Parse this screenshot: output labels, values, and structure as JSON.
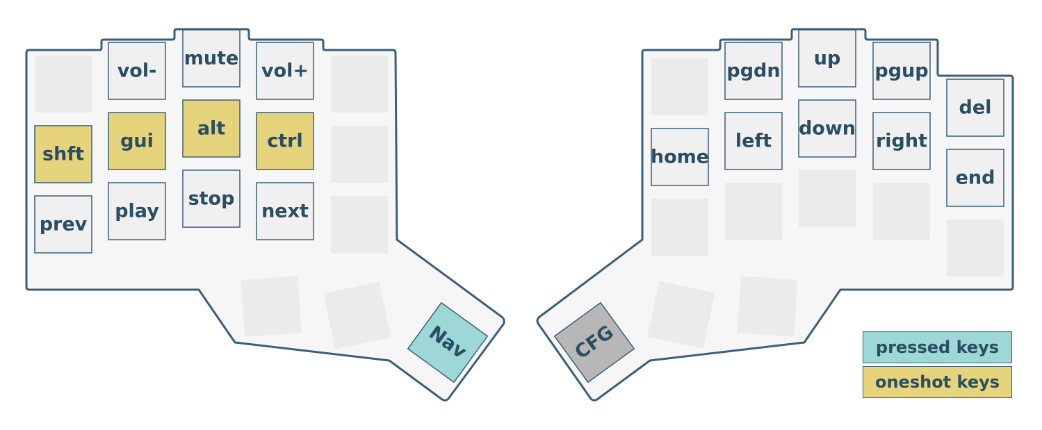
{
  "colors": {
    "outline": "#3a5f7a",
    "body": "#f6f6f6",
    "key": "#f0f0f0",
    "empty_key": "#ebebeb",
    "oneshot": "#e6d47c",
    "pressed": "#9dd8d6",
    "held_layer": "#b7b7b7",
    "text": "#2a4d62"
  },
  "left_keys": [
    {
      "label": "",
      "state": "empty"
    },
    {
      "label": "vol-",
      "state": "normal"
    },
    {
      "label": "mute",
      "state": "normal"
    },
    {
      "label": "vol+",
      "state": "normal"
    },
    {
      "label": "",
      "state": "empty"
    },
    {
      "label": "shft",
      "state": "oneshot"
    },
    {
      "label": "gui",
      "state": "oneshot"
    },
    {
      "label": "alt",
      "state": "oneshot"
    },
    {
      "label": "ctrl",
      "state": "oneshot"
    },
    {
      "label": "",
      "state": "empty"
    },
    {
      "label": "prev",
      "state": "normal"
    },
    {
      "label": "play",
      "state": "normal"
    },
    {
      "label": "stop",
      "state": "normal"
    },
    {
      "label": "next",
      "state": "normal"
    },
    {
      "label": "",
      "state": "empty"
    }
  ],
  "left_thumbs": [
    {
      "label": "",
      "state": "empty"
    },
    {
      "label": "",
      "state": "empty"
    },
    {
      "label": "Nav",
      "state": "pressed"
    }
  ],
  "right_keys": [
    {
      "label": "",
      "state": "empty"
    },
    {
      "label": "pgdn",
      "state": "normal"
    },
    {
      "label": "up",
      "state": "normal"
    },
    {
      "label": "pgup",
      "state": "normal"
    },
    {
      "label": "del",
      "state": "normal"
    },
    {
      "label": "home",
      "state": "normal"
    },
    {
      "label": "left",
      "state": "normal"
    },
    {
      "label": "down",
      "state": "normal"
    },
    {
      "label": "right",
      "state": "normal"
    },
    {
      "label": "end",
      "state": "normal"
    },
    {
      "label": "",
      "state": "empty"
    },
    {
      "label": "",
      "state": "empty"
    },
    {
      "label": "",
      "state": "empty"
    },
    {
      "label": "",
      "state": "empty"
    },
    {
      "label": "",
      "state": "empty"
    }
  ],
  "right_thumbs": [
    {
      "label": "CFG",
      "state": "held"
    },
    {
      "label": "",
      "state": "empty"
    },
    {
      "label": "",
      "state": "empty"
    }
  ],
  "legend": {
    "pressed": "pressed keys",
    "oneshot": "oneshot keys"
  }
}
